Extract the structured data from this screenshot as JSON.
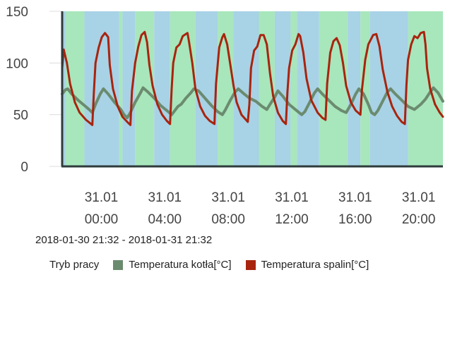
{
  "colors": {
    "boiler_temp": "#6b8b6f",
    "flue_temp": "#a8240e",
    "band_green": "#a8e6bc",
    "band_blue": "#a8d2e6",
    "axis": "#2e3b3b",
    "grid": "#dcdcdc"
  },
  "range_label": "2018-01-30 21:32 - 2018-01-31 21:32",
  "legend": {
    "items": [
      {
        "label": "Tryb pracy",
        "color": ""
      },
      {
        "label": "Temperatura kotła[°C]",
        "color": "#6b8b6f"
      },
      {
        "label": "Temperatura spalin[°C]",
        "color": "#a8240e"
      }
    ]
  },
  "chart_data": {
    "type": "line",
    "x_unit": "hours from 2018-01-30 21:32",
    "xlim": [
      0,
      24
    ],
    "ylim": [
      0,
      150
    ],
    "y_ticks": [
      0,
      50,
      100,
      150
    ],
    "x_ticks": [
      {
        "x": 2.47,
        "label1": "31.01",
        "label2": "00:00"
      },
      {
        "x": 6.47,
        "label1": "31.01",
        "label2": "04:00"
      },
      {
        "x": 10.47,
        "label1": "31.01",
        "label2": "08:00"
      },
      {
        "x": 14.47,
        "label1": "31.01",
        "label2": "12:00"
      },
      {
        "x": 18.47,
        "label1": "31.01",
        "label2": "16:00"
      },
      {
        "x": 22.47,
        "label1": "31.01",
        "label2": "20:00"
      }
    ],
    "mode_bands": [
      {
        "start": 0.0,
        "end": 0.2,
        "mode": "blue"
      },
      {
        "start": 0.2,
        "end": 1.4,
        "mode": "green"
      },
      {
        "start": 1.4,
        "end": 3.6,
        "mode": "blue"
      },
      {
        "start": 3.6,
        "end": 3.8,
        "mode": "green"
      },
      {
        "start": 3.8,
        "end": 4.6,
        "mode": "blue"
      },
      {
        "start": 4.6,
        "end": 5.8,
        "mode": "green"
      },
      {
        "start": 5.8,
        "end": 6.8,
        "mode": "blue"
      },
      {
        "start": 6.8,
        "end": 8.4,
        "mode": "green"
      },
      {
        "start": 8.4,
        "end": 9.8,
        "mode": "blue"
      },
      {
        "start": 9.8,
        "end": 10.8,
        "mode": "green"
      },
      {
        "start": 10.8,
        "end": 12.4,
        "mode": "blue"
      },
      {
        "start": 12.4,
        "end": 13.4,
        "mode": "green"
      },
      {
        "start": 13.4,
        "end": 14.4,
        "mode": "blue"
      },
      {
        "start": 14.4,
        "end": 14.8,
        "mode": "green"
      },
      {
        "start": 14.8,
        "end": 16.2,
        "mode": "blue"
      },
      {
        "start": 16.2,
        "end": 18.0,
        "mode": "green"
      },
      {
        "start": 18.0,
        "end": 18.8,
        "mode": "blue"
      },
      {
        "start": 18.8,
        "end": 19.4,
        "mode": "green"
      },
      {
        "start": 19.4,
        "end": 21.8,
        "mode": "blue"
      },
      {
        "start": 21.8,
        "end": 23.0,
        "mode": "green"
      },
      {
        "start": 23.0,
        "end": 24.0,
        "mode": "green"
      }
    ],
    "series": [
      {
        "name": "Temperatura kotła[°C]",
        "color": "#6b8b6f",
        "points": [
          [
            0.0,
            70
          ],
          [
            0.2,
            74
          ],
          [
            0.35,
            75
          ],
          [
            0.6,
            70
          ],
          [
            1.0,
            64
          ],
          [
            1.4,
            59
          ],
          [
            1.7,
            55
          ],
          [
            1.9,
            52
          ],
          [
            2.1,
            60
          ],
          [
            2.4,
            70
          ],
          [
            2.6,
            75
          ],
          [
            2.9,
            70
          ],
          [
            3.3,
            62
          ],
          [
            3.7,
            55
          ],
          [
            3.9,
            50
          ],
          [
            4.1,
            47
          ],
          [
            4.3,
            52
          ],
          [
            4.6,
            62
          ],
          [
            4.9,
            70
          ],
          [
            5.1,
            76
          ],
          [
            5.4,
            72
          ],
          [
            5.8,
            66
          ],
          [
            6.2,
            59
          ],
          [
            6.6,
            54
          ],
          [
            6.9,
            50
          ],
          [
            7.1,
            54
          ],
          [
            7.3,
            58
          ],
          [
            7.5,
            60
          ],
          [
            7.8,
            66
          ],
          [
            8.1,
            71
          ],
          [
            8.3,
            75
          ],
          [
            8.6,
            73
          ],
          [
            9.0,
            66
          ],
          [
            9.4,
            59
          ],
          [
            9.8,
            53
          ],
          [
            10.1,
            50
          ],
          [
            10.3,
            55
          ],
          [
            10.6,
            64
          ],
          [
            10.9,
            72
          ],
          [
            11.1,
            75
          ],
          [
            11.4,
            71
          ],
          [
            11.8,
            66
          ],
          [
            12.2,
            63
          ],
          [
            12.6,
            58
          ],
          [
            12.9,
            55
          ],
          [
            13.1,
            60
          ],
          [
            13.4,
            67
          ],
          [
            13.6,
            73
          ],
          [
            13.9,
            68
          ],
          [
            14.3,
            60
          ],
          [
            14.7,
            55
          ],
          [
            15.1,
            50
          ],
          [
            15.3,
            53
          ],
          [
            15.6,
            62
          ],
          [
            15.9,
            71
          ],
          [
            16.1,
            75
          ],
          [
            16.4,
            70
          ],
          [
            16.8,
            64
          ],
          [
            17.2,
            58
          ],
          [
            17.6,
            54
          ],
          [
            17.9,
            52
          ],
          [
            18.2,
            60
          ],
          [
            18.5,
            70
          ],
          [
            18.7,
            75
          ],
          [
            19.0,
            70
          ],
          [
            19.3,
            60
          ],
          [
            19.5,
            52
          ],
          [
            19.7,
            50
          ],
          [
            19.9,
            54
          ],
          [
            20.2,
            63
          ],
          [
            20.5,
            72
          ],
          [
            20.7,
            75
          ],
          [
            21.0,
            70
          ],
          [
            21.4,
            64
          ],
          [
            21.8,
            58
          ],
          [
            22.2,
            55
          ],
          [
            22.6,
            60
          ],
          [
            22.9,
            65
          ],
          [
            23.2,
            72
          ],
          [
            23.4,
            76
          ],
          [
            23.7,
            71
          ],
          [
            24.0,
            63
          ]
        ]
      },
      {
        "name": "Temperatura spalin[°C]",
        "color": "#a8240e",
        "points": [
          [
            0.0,
            95
          ],
          [
            0.1,
            113
          ],
          [
            0.3,
            100
          ],
          [
            0.5,
            80
          ],
          [
            0.8,
            62
          ],
          [
            1.1,
            52
          ],
          [
            1.5,
            45
          ],
          [
            1.9,
            40
          ],
          [
            2.0,
            72
          ],
          [
            2.1,
            100
          ],
          [
            2.3,
            115
          ],
          [
            2.5,
            125
          ],
          [
            2.7,
            129
          ],
          [
            2.9,
            125
          ],
          [
            3.0,
            98
          ],
          [
            3.2,
            75
          ],
          [
            3.5,
            58
          ],
          [
            3.8,
            48
          ],
          [
            4.1,
            43
          ],
          [
            4.3,
            40
          ],
          [
            4.4,
            73
          ],
          [
            4.6,
            100
          ],
          [
            4.8,
            116
          ],
          [
            5.0,
            127
          ],
          [
            5.2,
            130
          ],
          [
            5.35,
            120
          ],
          [
            5.5,
            98
          ],
          [
            5.7,
            78
          ],
          [
            6.0,
            60
          ],
          [
            6.3,
            50
          ],
          [
            6.6,
            44
          ],
          [
            6.8,
            41
          ],
          [
            6.9,
            75
          ],
          [
            7.0,
            100
          ],
          [
            7.2,
            115
          ],
          [
            7.4,
            118
          ],
          [
            7.6,
            126
          ],
          [
            7.9,
            129
          ],
          [
            8.0,
            120
          ],
          [
            8.2,
            100
          ],
          [
            8.4,
            75
          ],
          [
            8.7,
            58
          ],
          [
            9.0,
            49
          ],
          [
            9.3,
            44
          ],
          [
            9.6,
            41
          ],
          [
            9.7,
            80
          ],
          [
            9.9,
            115
          ],
          [
            10.1,
            125
          ],
          [
            10.2,
            128
          ],
          [
            10.4,
            118
          ],
          [
            10.6,
            98
          ],
          [
            10.8,
            78
          ],
          [
            11.0,
            62
          ],
          [
            11.3,
            50
          ],
          [
            11.7,
            43
          ],
          [
            11.8,
            60
          ],
          [
            11.9,
            95
          ],
          [
            12.1,
            112
          ],
          [
            12.3,
            116
          ],
          [
            12.5,
            127
          ],
          [
            12.7,
            127
          ],
          [
            12.9,
            118
          ],
          [
            13.1,
            90
          ],
          [
            13.3,
            68
          ],
          [
            13.6,
            52
          ],
          [
            13.9,
            44
          ],
          [
            14.1,
            41
          ],
          [
            14.2,
            72
          ],
          [
            14.3,
            95
          ],
          [
            14.5,
            112
          ],
          [
            14.7,
            118
          ],
          [
            14.9,
            128
          ],
          [
            15.0,
            126
          ],
          [
            15.2,
            110
          ],
          [
            15.4,
            85
          ],
          [
            15.7,
            64
          ],
          [
            16.1,
            52
          ],
          [
            16.4,
            47
          ],
          [
            16.6,
            45
          ],
          [
            16.7,
            80
          ],
          [
            16.9,
            110
          ],
          [
            17.1,
            121
          ],
          [
            17.3,
            124
          ],
          [
            17.5,
            117
          ],
          [
            17.7,
            100
          ],
          [
            17.9,
            78
          ],
          [
            18.2,
            62
          ],
          [
            18.5,
            54
          ],
          [
            18.8,
            50
          ],
          [
            18.9,
            75
          ],
          [
            19.1,
            103
          ],
          [
            19.3,
            118
          ],
          [
            19.6,
            127
          ],
          [
            19.8,
            128
          ],
          [
            20.0,
            116
          ],
          [
            20.2,
            94
          ],
          [
            20.5,
            72
          ],
          [
            20.8,
            58
          ],
          [
            21.1,
            49
          ],
          [
            21.4,
            43
          ],
          [
            21.6,
            41
          ],
          [
            21.7,
            78
          ],
          [
            21.8,
            103
          ],
          [
            22.0,
            118
          ],
          [
            22.2,
            126
          ],
          [
            22.4,
            124
          ],
          [
            22.6,
            129
          ],
          [
            22.8,
            130
          ],
          [
            22.9,
            118
          ],
          [
            23.0,
            95
          ],
          [
            23.2,
            75
          ],
          [
            23.5,
            60
          ],
          [
            23.8,
            52
          ],
          [
            24.0,
            48
          ]
        ]
      }
    ]
  }
}
